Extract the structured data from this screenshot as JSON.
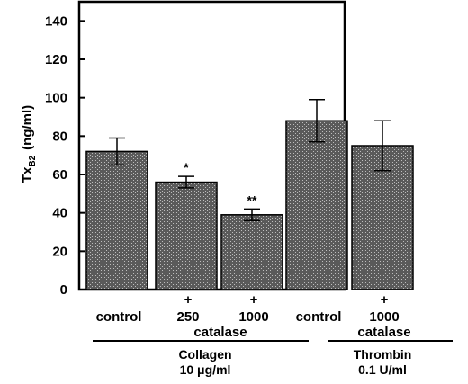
{
  "chart_data": {
    "type": "bar",
    "ylabel_main": "Tx",
    "ylabel_sub": "B2",
    "ylabel_unit": "(ng/ml)",
    "ylim": [
      0,
      150
    ],
    "yticks": [
      0,
      20,
      40,
      60,
      80,
      100,
      120,
      140
    ],
    "grid": false,
    "bars": [
      {
        "label": "control",
        "value": 72,
        "error": 7,
        "plus": "",
        "sig": ""
      },
      {
        "label": "250",
        "value": 56,
        "error": 3,
        "plus": "+",
        "sig": "*"
      },
      {
        "label": "1000",
        "value": 39,
        "error": 3,
        "plus": "+",
        "sig": "**"
      },
      {
        "label": "control",
        "value": 88,
        "error": 11,
        "plus": "",
        "sig": ""
      },
      {
        "label": "1000",
        "value": 75,
        "error": 13,
        "plus": "+",
        "sig": ""
      }
    ],
    "catalase_labels": [
      "catalase",
      "catalase"
    ],
    "groups": [
      {
        "name": "Collagen",
        "dose": "10 μg/ml"
      },
      {
        "name": "Thrombin",
        "dose": "0.1 U/ml"
      }
    ]
  }
}
